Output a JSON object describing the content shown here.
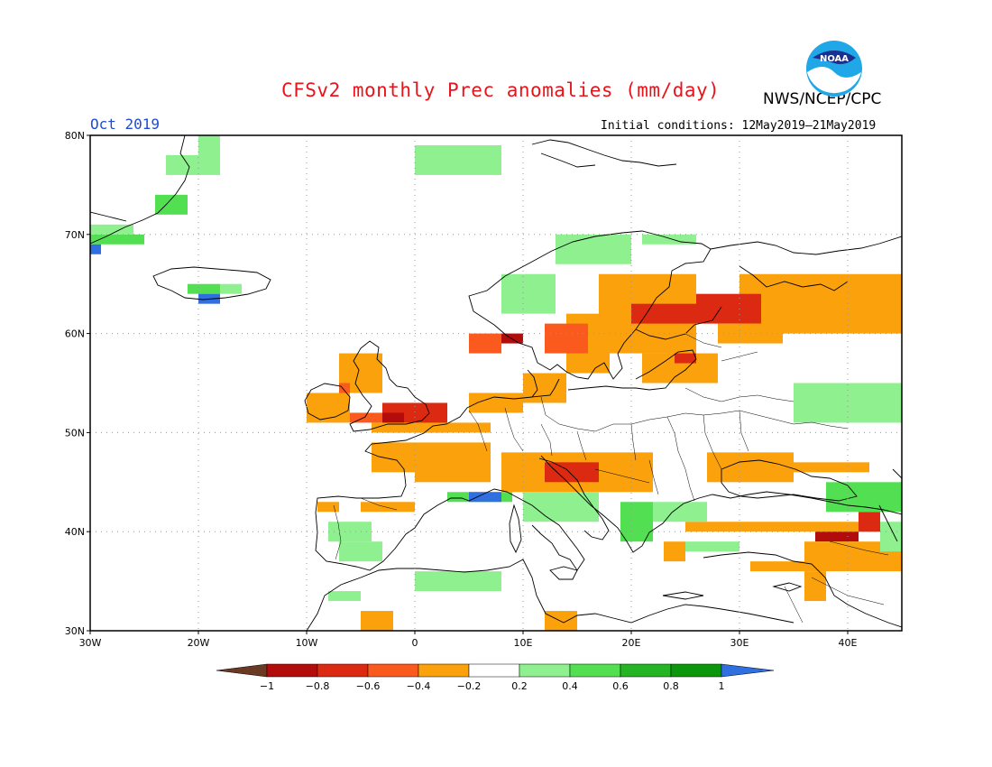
{
  "header": {
    "title": "CFSv2 monthly Prec anomalies (mm/day)",
    "organization": "NWS/NCEP/CPC",
    "period": "Oct 2019",
    "initial_conditions": "Initial conditions: 12May2019–21May2019",
    "logo_text": "NOAA"
  },
  "axes": {
    "lon_labels": [
      "30W",
      "20W",
      "10W",
      "0",
      "10E",
      "20E",
      "30E",
      "40E"
    ],
    "lat_labels": [
      "80N",
      "70N",
      "60N",
      "50N",
      "40N",
      "30N"
    ],
    "lon_values": [
      -30,
      -20,
      -10,
      0,
      10,
      20,
      30,
      40
    ],
    "lat_values": [
      80,
      70,
      60,
      50,
      40,
      30
    ],
    "lon_range": [
      -30,
      45
    ],
    "lat_range": [
      30,
      80
    ],
    "grid": "dotted"
  },
  "colorbar": {
    "labels": [
      "−1",
      "−0.8",
      "−0.6",
      "−0.4",
      "−0.2",
      "0.2",
      "0.4",
      "0.6",
      "0.8",
      "1"
    ],
    "colors": [
      "#6b3a24",
      "#b30c0c",
      "#dc2a12",
      "#fa5a1e",
      "#fba10c",
      "#ffffff",
      "#8ef08e",
      "#52e052",
      "#24b424",
      "#0c960c",
      "#2f6fe0"
    ]
  },
  "anomaly_regions": [
    {
      "cls": "pos1",
      "lon": [
        -23,
        -20
      ],
      "lat": [
        76,
        78
      ]
    },
    {
      "cls": "pos1",
      "lon": [
        -20,
        -18
      ],
      "lat": [
        76,
        80
      ]
    },
    {
      "cls": "pos2",
      "lon": [
        -24,
        -21
      ],
      "lat": [
        72,
        74
      ]
    },
    {
      "cls": "pos2",
      "lon": [
        -30,
        -25
      ],
      "lat": [
        69,
        70
      ]
    },
    {
      "cls": "pos1",
      "lon": [
        -30,
        -26
      ],
      "lat": [
        70,
        71
      ]
    },
    {
      "cls": "pos3",
      "lon": [
        -30,
        -29
      ],
      "lat": [
        68,
        69
      ]
    },
    {
      "cls": "pos2",
      "lon": [
        -21,
        -18
      ],
      "lat": [
        64,
        65
      ]
    },
    {
      "cls": "pos1",
      "lon": [
        -18,
        -16
      ],
      "lat": [
        64,
        65
      ]
    },
    {
      "cls": "pos3",
      "lon": [
        -20,
        -18
      ],
      "lat": [
        63,
        64
      ]
    },
    {
      "cls": "pos1",
      "lon": [
        0,
        8
      ],
      "lat": [
        76,
        79
      ]
    },
    {
      "cls": "pos1",
      "lon": [
        13,
        20
      ],
      "lat": [
        67,
        70
      ]
    },
    {
      "cls": "pos1",
      "lon": [
        8,
        13
      ],
      "lat": [
        62,
        66
      ]
    },
    {
      "cls": "pos1",
      "lon": [
        21,
        26
      ],
      "lat": [
        69,
        70
      ]
    },
    {
      "cls": "neg4",
      "lon": [
        17,
        26
      ],
      "lat": [
        58,
        66
      ]
    },
    {
      "cls": "neg2",
      "lon": [
        20,
        26
      ],
      "lat": [
        61,
        63
      ]
    },
    {
      "cls": "neg4",
      "lon": [
        30,
        45
      ],
      "lat": [
        60,
        66
      ]
    },
    {
      "cls": "neg2",
      "lon": [
        26,
        32
      ],
      "lat": [
        61,
        64
      ]
    },
    {
      "cls": "neg4",
      "lon": [
        28,
        34
      ],
      "lat": [
        59,
        61
      ]
    },
    {
      "cls": "neg4",
      "lon": [
        14,
        18
      ],
      "lat": [
        56,
        62
      ]
    },
    {
      "cls": "neg3",
      "lon": [
        12,
        16
      ],
      "lat": [
        58,
        61
      ]
    },
    {
      "cls": "neg1",
      "lon": [
        8,
        10
      ],
      "lat": [
        59,
        60
      ]
    },
    {
      "cls": "neg3",
      "lon": [
        5,
        8
      ],
      "lat": [
        58,
        60
      ]
    },
    {
      "cls": "neg4",
      "lon": [
        21,
        28
      ],
      "lat": [
        55,
        58
      ]
    },
    {
      "cls": "neg2",
      "lon": [
        24,
        26
      ],
      "lat": [
        57,
        58
      ]
    },
    {
      "cls": "neg4",
      "lon": [
        -7,
        -3
      ],
      "lat": [
        54,
        58
      ]
    },
    {
      "cls": "neg3",
      "lon": [
        -7,
        -6
      ],
      "lat": [
        54,
        55
      ]
    },
    {
      "cls": "neg4",
      "lon": [
        -10,
        -6
      ],
      "lat": [
        51,
        54
      ]
    },
    {
      "cls": "neg2",
      "lon": [
        -3,
        3
      ],
      "lat": [
        50,
        53
      ]
    },
    {
      "cls": "neg1",
      "lon": [
        -3,
        -1
      ],
      "lat": [
        51,
        52
      ]
    },
    {
      "cls": "neg3",
      "lon": [
        -6,
        -3
      ],
      "lat": [
        51,
        52
      ]
    },
    {
      "cls": "neg4",
      "lon": [
        -4,
        7
      ],
      "lat": [
        50,
        51
      ]
    },
    {
      "cls": "neg4",
      "lon": [
        5,
        10
      ],
      "lat": [
        52,
        54
      ]
    },
    {
      "cls": "neg4",
      "lon": [
        10,
        14
      ],
      "lat": [
        53,
        56
      ]
    },
    {
      "cls": "neg4",
      "lon": [
        -4,
        0
      ],
      "lat": [
        46,
        49
      ]
    },
    {
      "cls": "neg4",
      "lon": [
        0,
        7
      ],
      "lat": [
        45,
        49
      ]
    },
    {
      "cls": "neg4",
      "lon": [
        8,
        22
      ],
      "lat": [
        44,
        48
      ]
    },
    {
      "cls": "neg2",
      "lon": [
        12,
        17
      ],
      "lat": [
        45,
        47
      ]
    },
    {
      "cls": "neg4",
      "lon": [
        27,
        35
      ],
      "lat": [
        45,
        48
      ]
    },
    {
      "cls": "neg4",
      "lon": [
        30,
        42
      ],
      "lat": [
        46,
        47
      ]
    },
    {
      "cls": "neg4",
      "lon": [
        -9,
        -7
      ],
      "lat": [
        42,
        43
      ]
    },
    {
      "cls": "neg4",
      "lon": [
        -5,
        0
      ],
      "lat": [
        42,
        43
      ]
    },
    {
      "cls": "neg4",
      "lon": [
        25,
        43
      ],
      "lat": [
        40,
        41
      ]
    },
    {
      "cls": "neg1",
      "lon": [
        37,
        41
      ],
      "lat": [
        39,
        40
      ]
    },
    {
      "cls": "neg2",
      "lon": [
        41,
        43
      ],
      "lat": [
        40,
        42
      ]
    },
    {
      "cls": "neg4",
      "lon": [
        36,
        45
      ],
      "lat": [
        36,
        39
      ]
    },
    {
      "cls": "neg4",
      "lon": [
        31,
        36
      ],
      "lat": [
        36,
        37
      ]
    },
    {
      "cls": "neg4",
      "lon": [
        23,
        25
      ],
      "lat": [
        37,
        39
      ]
    },
    {
      "cls": "neg4",
      "lon": [
        -5,
        -2
      ],
      "lat": [
        30,
        32
      ]
    },
    {
      "cls": "neg4",
      "lon": [
        12,
        15
      ],
      "lat": [
        30,
        32
      ]
    },
    {
      "cls": "neg4",
      "lon": [
        36,
        38
      ],
      "lat": [
        33,
        36
      ]
    },
    {
      "cls": "pos1",
      "lon": [
        -8,
        -4
      ],
      "lat": [
        39,
        41
      ]
    },
    {
      "cls": "pos1",
      "lon": [
        -7,
        -3
      ],
      "lat": [
        37,
        39
      ]
    },
    {
      "cls": "pos1",
      "lon": [
        -8,
        -5
      ],
      "lat": [
        33,
        34
      ]
    },
    {
      "cls": "pos1",
      "lon": [
        0,
        8
      ],
      "lat": [
        34,
        36
      ]
    },
    {
      "cls": "pos2",
      "lon": [
        3,
        9
      ],
      "lat": [
        43,
        44
      ]
    },
    {
      "cls": "pos3",
      "lon": [
        5,
        8
      ],
      "lat": [
        43,
        44
      ]
    },
    {
      "cls": "pos1",
      "lon": [
        10,
        17
      ],
      "lat": [
        41,
        44
      ]
    },
    {
      "cls": "pos2",
      "lon": [
        19,
        22
      ],
      "lat": [
        39,
        43
      ]
    },
    {
      "cls": "pos1",
      "lon": [
        22,
        27
      ],
      "lat": [
        41,
        43
      ]
    },
    {
      "cls": "pos1",
      "lon": [
        25,
        30
      ],
      "lat": [
        38,
        39
      ]
    },
    {
      "cls": "pos1",
      "lon": [
        35,
        45
      ],
      "lat": [
        51,
        55
      ]
    },
    {
      "cls": "pos2",
      "lon": [
        38,
        45
      ],
      "lat": [
        42,
        45
      ]
    },
    {
      "cls": "pos1",
      "lon": [
        43,
        45
      ],
      "lat": [
        38,
        41
      ]
    }
  ]
}
